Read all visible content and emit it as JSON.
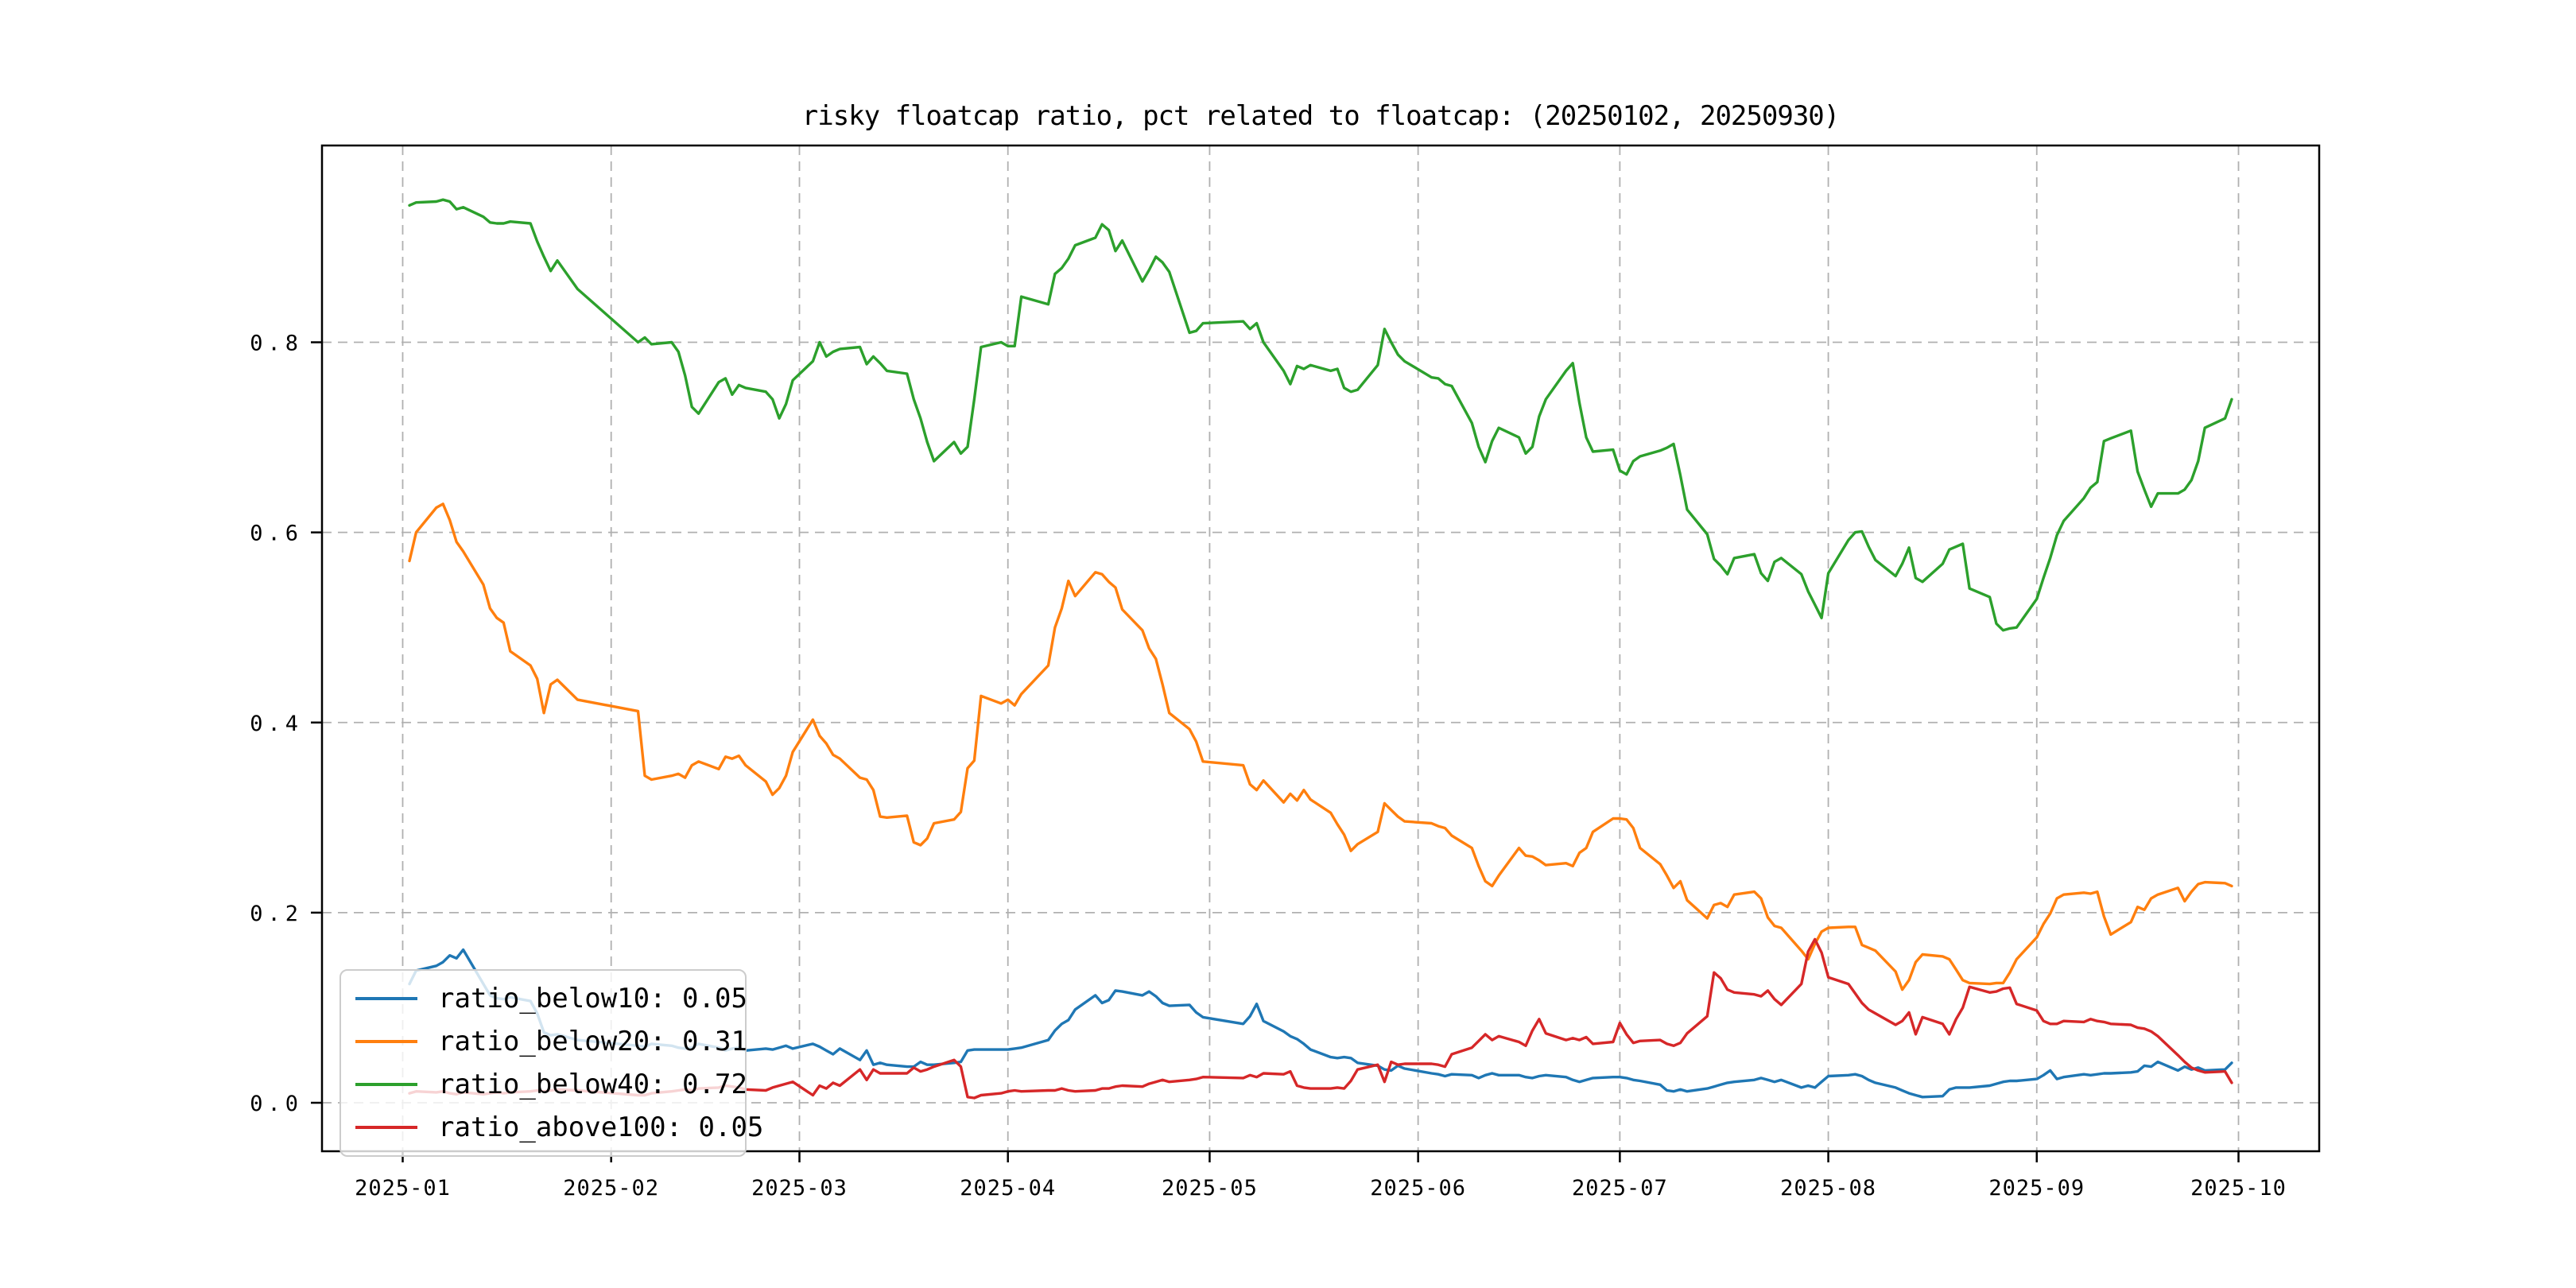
{
  "chart_data": {
    "type": "line",
    "title": "risky floatcap ratio, pct related to floatcap: (20250102, 20250930)",
    "xlabel": "",
    "ylabel": "",
    "grid": true,
    "grid_color": "#b0b0b0",
    "spine_color": "#000000",
    "text_color": "#000000",
    "background": "#ffffff",
    "legend_position": "lower-left",
    "xlim": [
      "2024-12-20",
      "2025-10-13"
    ],
    "ylim": [
      -0.051,
      1.007
    ],
    "x_ticks": [
      "2025-01-01",
      "2025-02-01",
      "2025-03-01",
      "2025-04-01",
      "2025-05-01",
      "2025-06-01",
      "2025-07-01",
      "2025-08-01",
      "2025-09-01",
      "2025-10-01"
    ],
    "x_tick_labels": [
      "2025-01",
      "2025-02",
      "2025-03",
      "2025-04",
      "2025-05",
      "2025-06",
      "2025-07",
      "2025-08",
      "2025-09",
      "2025-10"
    ],
    "y_ticks": [
      0.0,
      0.2,
      0.4,
      0.6,
      0.8
    ],
    "y_tick_labels": [
      "0.0",
      "0.2",
      "0.4",
      "0.6",
      "0.8"
    ],
    "dates": [
      "2025-01-02",
      "2025-01-03",
      "2025-01-06",
      "2025-01-07",
      "2025-01-08",
      "2025-01-09",
      "2025-01-10",
      "2025-01-13",
      "2025-01-14",
      "2025-01-15",
      "2025-01-16",
      "2025-01-17",
      "2025-01-20",
      "2025-01-21",
      "2025-01-22",
      "2025-01-23",
      "2025-01-24",
      "2025-01-27",
      "2025-02-05",
      "2025-02-06",
      "2025-02-07",
      "2025-02-10",
      "2025-02-11",
      "2025-02-12",
      "2025-02-13",
      "2025-02-14",
      "2025-02-17",
      "2025-02-18",
      "2025-02-19",
      "2025-02-20",
      "2025-02-21",
      "2025-02-24",
      "2025-02-25",
      "2025-02-26",
      "2025-02-27",
      "2025-02-28",
      "2025-03-03",
      "2025-03-04",
      "2025-03-05",
      "2025-03-06",
      "2025-03-07",
      "2025-03-10",
      "2025-03-11",
      "2025-03-12",
      "2025-03-13",
      "2025-03-14",
      "2025-03-17",
      "2025-03-18",
      "2025-03-19",
      "2025-03-20",
      "2025-03-21",
      "2025-03-24",
      "2025-03-25",
      "2025-03-26",
      "2025-03-27",
      "2025-03-28",
      "2025-03-31",
      "2025-04-01",
      "2025-04-02",
      "2025-04-03",
      "2025-04-07",
      "2025-04-08",
      "2025-04-09",
      "2025-04-10",
      "2025-04-11",
      "2025-04-14",
      "2025-04-15",
      "2025-04-16",
      "2025-04-17",
      "2025-04-18",
      "2025-04-21",
      "2025-04-22",
      "2025-04-23",
      "2025-04-24",
      "2025-04-25",
      "2025-04-28",
      "2025-04-29",
      "2025-04-30",
      "2025-05-06",
      "2025-05-07",
      "2025-05-08",
      "2025-05-09",
      "2025-05-12",
      "2025-05-13",
      "2025-05-14",
      "2025-05-15",
      "2025-05-16",
      "2025-05-19",
      "2025-05-20",
      "2025-05-21",
      "2025-05-22",
      "2025-05-23",
      "2025-05-26",
      "2025-05-27",
      "2025-05-28",
      "2025-05-29",
      "2025-05-30",
      "2025-06-03",
      "2025-06-04",
      "2025-06-05",
      "2025-06-06",
      "2025-06-09",
      "2025-06-10",
      "2025-06-11",
      "2025-06-12",
      "2025-06-13",
      "2025-06-16",
      "2025-06-17",
      "2025-06-18",
      "2025-06-19",
      "2025-06-20",
      "2025-06-23",
      "2025-06-24",
      "2025-06-25",
      "2025-06-26",
      "2025-06-27",
      "2025-06-30",
      "2025-07-01",
      "2025-07-02",
      "2025-07-03",
      "2025-07-04",
      "2025-07-07",
      "2025-07-08",
      "2025-07-09",
      "2025-07-10",
      "2025-07-11",
      "2025-07-14",
      "2025-07-15",
      "2025-07-16",
      "2025-07-17",
      "2025-07-18",
      "2025-07-21",
      "2025-07-22",
      "2025-07-23",
      "2025-07-24",
      "2025-07-25",
      "2025-07-28",
      "2025-07-29",
      "2025-07-30",
      "2025-07-31",
      "2025-08-01",
      "2025-08-04",
      "2025-08-05",
      "2025-08-06",
      "2025-08-07",
      "2025-08-08",
      "2025-08-11",
      "2025-08-12",
      "2025-08-13",
      "2025-08-14",
      "2025-08-15",
      "2025-08-18",
      "2025-08-19",
      "2025-08-20",
      "2025-08-21",
      "2025-08-22",
      "2025-08-25",
      "2025-08-26",
      "2025-08-27",
      "2025-08-28",
      "2025-08-29",
      "2025-09-01",
      "2025-09-02",
      "2025-09-03",
      "2025-09-04",
      "2025-09-05",
      "2025-09-08",
      "2025-09-09",
      "2025-09-10",
      "2025-09-11",
      "2025-09-12",
      "2025-09-15",
      "2025-09-16",
      "2025-09-17",
      "2025-09-18",
      "2025-09-19",
      "2025-09-22",
      "2025-09-23",
      "2025-09-24",
      "2025-09-25",
      "2025-09-26",
      "2025-09-29",
      "2025-09-30"
    ],
    "series": [
      {
        "name": "ratio_below10",
        "legend_label": "ratio_below10: 0.05",
        "legend_value": "0.05",
        "color": "#1f77b4",
        "values": [
          0.125,
          0.139,
          0.144,
          0.148,
          0.155,
          0.152,
          0.161,
          0.125,
          0.113,
          0.11,
          0.109,
          0.111,
          0.107,
          0.094,
          0.074,
          0.071,
          0.072,
          0.066,
          0.06,
          0.059,
          0.062,
          0.06,
          0.058,
          0.057,
          0.058,
          0.062,
          0.058,
          0.055,
          0.057,
          0.058,
          0.055,
          0.057,
          0.056,
          0.058,
          0.06,
          0.057,
          0.062,
          0.059,
          0.055,
          0.051,
          0.057,
          0.045,
          0.055,
          0.04,
          0.042,
          0.04,
          0.038,
          0.038,
          0.043,
          0.04,
          0.04,
          0.042,
          0.043,
          0.055,
          0.056,
          0.056,
          0.056,
          0.056,
          0.057,
          0.058,
          0.066,
          0.076,
          0.083,
          0.087,
          0.098,
          0.113,
          0.105,
          0.108,
          0.118,
          0.117,
          0.113,
          0.117,
          0.112,
          0.105,
          0.102,
          0.103,
          0.095,
          0.09,
          0.083,
          0.091,
          0.104,
          0.086,
          0.075,
          0.07,
          0.067,
          0.062,
          0.056,
          0.048,
          0.047,
          0.048,
          0.047,
          0.042,
          0.039,
          0.035,
          0.034,
          0.039,
          0.036,
          0.031,
          0.03,
          0.028,
          0.03,
          0.029,
          0.026,
          0.029,
          0.031,
          0.029,
          0.029,
          0.027,
          0.026,
          0.028,
          0.029,
          0.027,
          0.024,
          0.022,
          0.024,
          0.026,
          0.027,
          0.027,
          0.026,
          0.024,
          0.023,
          0.019,
          0.013,
          0.012,
          0.014,
          0.012,
          0.015,
          0.017,
          0.019,
          0.021,
          0.022,
          0.024,
          0.026,
          0.024,
          0.022,
          0.024,
          0.016,
          0.018,
          0.016,
          0.022,
          0.028,
          0.029,
          0.03,
          0.028,
          0.024,
          0.021,
          0.016,
          0.013,
          0.01,
          0.008,
          0.006,
          0.007,
          0.014,
          0.016,
          0.016,
          0.016,
          0.018,
          0.02,
          0.022,
          0.023,
          0.023,
          0.025,
          0.029,
          0.034,
          0.025,
          0.027,
          0.03,
          0.029,
          0.03,
          0.031,
          0.031,
          0.032,
          0.033,
          0.039,
          0.038,
          0.043,
          0.034,
          0.038,
          0.035,
          0.037,
          0.034,
          0.035,
          0.042
        ]
      },
      {
        "name": "ratio_below20",
        "legend_label": "ratio_below20: 0.31",
        "legend_value": "0.31",
        "color": "#ff7f0e",
        "values": [
          0.57,
          0.6,
          0.626,
          0.63,
          0.613,
          0.59,
          0.58,
          0.545,
          0.52,
          0.51,
          0.505,
          0.475,
          0.46,
          0.446,
          0.41,
          0.44,
          0.445,
          0.424,
          0.412,
          0.344,
          0.34,
          0.344,
          0.346,
          0.342,
          0.355,
          0.359,
          0.351,
          0.364,
          0.362,
          0.365,
          0.355,
          0.338,
          0.324,
          0.331,
          0.344,
          0.369,
          0.403,
          0.386,
          0.378,
          0.366,
          0.362,
          0.342,
          0.34,
          0.329,
          0.301,
          0.3,
          0.302,
          0.274,
          0.271,
          0.278,
          0.294,
          0.298,
          0.306,
          0.352,
          0.36,
          0.428,
          0.42,
          0.424,
          0.418,
          0.43,
          0.46,
          0.5,
          0.52,
          0.549,
          0.533,
          0.558,
          0.556,
          0.548,
          0.542,
          0.519,
          0.497,
          0.478,
          0.467,
          0.44,
          0.41,
          0.393,
          0.38,
          0.359,
          0.355,
          0.335,
          0.329,
          0.339,
          0.316,
          0.325,
          0.318,
          0.329,
          0.319,
          0.305,
          0.293,
          0.282,
          0.265,
          0.272,
          0.285,
          0.315,
          0.308,
          0.301,
          0.296,
          0.294,
          0.291,
          0.289,
          0.281,
          0.268,
          0.249,
          0.233,
          0.228,
          0.239,
          0.268,
          0.26,
          0.259,
          0.255,
          0.25,
          0.252,
          0.249,
          0.263,
          0.268,
          0.285,
          0.299,
          0.299,
          0.298,
          0.289,
          0.268,
          0.251,
          0.239,
          0.226,
          0.233,
          0.213,
          0.194,
          0.208,
          0.21,
          0.206,
          0.219,
          0.222,
          0.215,
          0.195,
          0.186,
          0.184,
          0.16,
          0.151,
          0.167,
          0.18,
          0.184,
          0.185,
          0.185,
          0.166,
          0.163,
          0.16,
          0.138,
          0.119,
          0.129,
          0.148,
          0.156,
          0.154,
          0.151,
          0.14,
          0.129,
          0.126,
          0.125,
          0.126,
          0.126,
          0.137,
          0.151,
          0.174,
          0.188,
          0.199,
          0.215,
          0.219,
          0.221,
          0.22,
          0.222,
          0.196,
          0.177,
          0.19,
          0.206,
          0.203,
          0.215,
          0.219,
          0.226,
          0.212,
          0.222,
          0.23,
          0.232,
          0.231,
          0.228
        ]
      },
      {
        "name": "ratio_below40",
        "legend_label": "ratio_below40: 0.72",
        "legend_value": "0.72",
        "color": "#2ca02c",
        "values": [
          0.944,
          0.947,
          0.948,
          0.95,
          0.948,
          0.94,
          0.942,
          0.932,
          0.926,
          0.925,
          0.925,
          0.927,
          0.925,
          0.906,
          0.89,
          0.875,
          0.886,
          0.856,
          0.8,
          0.805,
          0.798,
          0.8,
          0.79,
          0.765,
          0.732,
          0.725,
          0.758,
          0.762,
          0.745,
          0.755,
          0.752,
          0.748,
          0.74,
          0.72,
          0.735,
          0.76,
          0.78,
          0.8,
          0.785,
          0.79,
          0.793,
          0.795,
          0.777,
          0.785,
          0.778,
          0.77,
          0.767,
          0.74,
          0.72,
          0.695,
          0.675,
          0.695,
          0.683,
          0.69,
          0.74,
          0.795,
          0.8,
          0.796,
          0.796,
          0.848,
          0.84,
          0.872,
          0.878,
          0.888,
          0.902,
          0.91,
          0.924,
          0.918,
          0.896,
          0.907,
          0.864,
          0.876,
          0.89,
          0.884,
          0.874,
          0.81,
          0.812,
          0.82,
          0.822,
          0.814,
          0.82,
          0.8,
          0.77,
          0.756,
          0.775,
          0.772,
          0.776,
          0.77,
          0.772,
          0.752,
          0.748,
          0.75,
          0.776,
          0.814,
          0.8,
          0.787,
          0.78,
          0.763,
          0.762,
          0.756,
          0.754,
          0.715,
          0.69,
          0.674,
          0.696,
          0.71,
          0.7,
          0.683,
          0.69,
          0.722,
          0.74,
          0.77,
          0.778,
          0.736,
          0.7,
          0.685,
          0.687,
          0.665,
          0.661,
          0.675,
          0.68,
          0.686,
          0.689,
          0.693,
          0.66,
          0.624,
          0.598,
          0.572,
          0.565,
          0.556,
          0.573,
          0.577,
          0.557,
          0.549,
          0.569,
          0.573,
          0.556,
          0.538,
          0.524,
          0.51,
          0.557,
          0.592,
          0.6,
          0.601,
          0.585,
          0.571,
          0.554,
          0.567,
          0.584,
          0.552,
          0.548,
          0.567,
          0.582,
          0.585,
          0.588,
          0.541,
          0.532,
          0.504,
          0.497,
          0.499,
          0.5,
          0.53,
          0.552,
          0.573,
          0.597,
          0.612,
          0.636,
          0.647,
          0.653,
          0.696,
          0.699,
          0.707,
          0.664,
          0.645,
          0.627,
          0.641,
          0.641,
          0.645,
          0.655,
          0.675,
          0.71,
          0.72,
          0.74
        ]
      },
      {
        "name": "ratio_above100",
        "legend_label": "ratio_above100: 0.05",
        "legend_value": "0.05",
        "color": "#d62728",
        "values": [
          0.01,
          0.012,
          0.011,
          0.012,
          0.01,
          0.009,
          0.011,
          0.009,
          0.01,
          0.011,
          0.01,
          0.011,
          0.012,
          0.013,
          0.012,
          0.013,
          0.014,
          0.013,
          0.008,
          0.008,
          0.01,
          0.012,
          0.013,
          0.014,
          0.013,
          0.015,
          0.016,
          0.018,
          0.017,
          0.016,
          0.014,
          0.013,
          0.016,
          0.018,
          0.02,
          0.022,
          0.008,
          0.018,
          0.015,
          0.021,
          0.018,
          0.035,
          0.024,
          0.035,
          0.031,
          0.031,
          0.031,
          0.037,
          0.033,
          0.035,
          0.038,
          0.045,
          0.038,
          0.006,
          0.005,
          0.008,
          0.01,
          0.012,
          0.013,
          0.012,
          0.013,
          0.013,
          0.015,
          0.013,
          0.012,
          0.013,
          0.015,
          0.015,
          0.017,
          0.018,
          0.017,
          0.02,
          0.022,
          0.024,
          0.022,
          0.024,
          0.025,
          0.027,
          0.026,
          0.029,
          0.027,
          0.031,
          0.03,
          0.033,
          0.018,
          0.016,
          0.015,
          0.015,
          0.016,
          0.015,
          0.023,
          0.035,
          0.04,
          0.022,
          0.043,
          0.04,
          0.041,
          0.041,
          0.04,
          0.038,
          0.051,
          0.058,
          0.065,
          0.072,
          0.066,
          0.07,
          0.064,
          0.06,
          0.076,
          0.088,
          0.073,
          0.066,
          0.068,
          0.066,
          0.069,
          0.062,
          0.064,
          0.084,
          0.072,
          0.063,
          0.065,
          0.066,
          0.062,
          0.06,
          0.063,
          0.073,
          0.091,
          0.137,
          0.131,
          0.119,
          0.116,
          0.114,
          0.112,
          0.118,
          0.109,
          0.103,
          0.125,
          0.159,
          0.172,
          0.158,
          0.132,
          0.125,
          0.115,
          0.105,
          0.098,
          0.094,
          0.082,
          0.086,
          0.095,
          0.072,
          0.09,
          0.083,
          0.072,
          0.088,
          0.1,
          0.122,
          0.116,
          0.117,
          0.12,
          0.121,
          0.104,
          0.097,
          0.086,
          0.083,
          0.083,
          0.086,
          0.085,
          0.088,
          0.086,
          0.085,
          0.083,
          0.082,
          0.079,
          0.078,
          0.075,
          0.07,
          0.05,
          0.043,
          0.037,
          0.034,
          0.032,
          0.033,
          0.021
        ]
      }
    ]
  }
}
